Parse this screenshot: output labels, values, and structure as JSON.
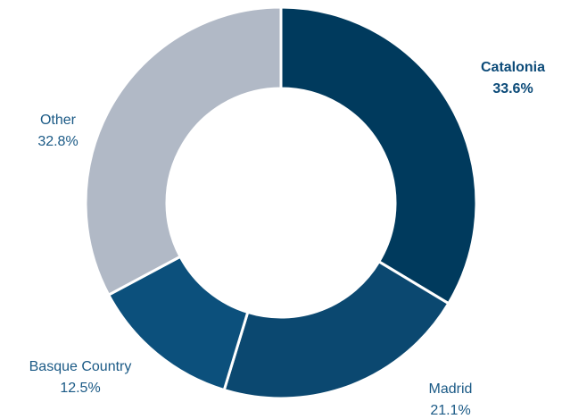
{
  "chart_data": {
    "type": "donut",
    "categories": [
      "Catalonia",
      "Madrid",
      "Basque Country",
      "Other"
    ],
    "values": [
      33.6,
      21.1,
      12.5,
      32.8
    ],
    "value_labels": [
      "33.6%",
      "21.1%",
      "12.5%",
      "32.8%"
    ],
    "colors": [
      "#003a5d",
      "#0b4870",
      "#0c507c",
      "#b1b9c6"
    ]
  }
}
